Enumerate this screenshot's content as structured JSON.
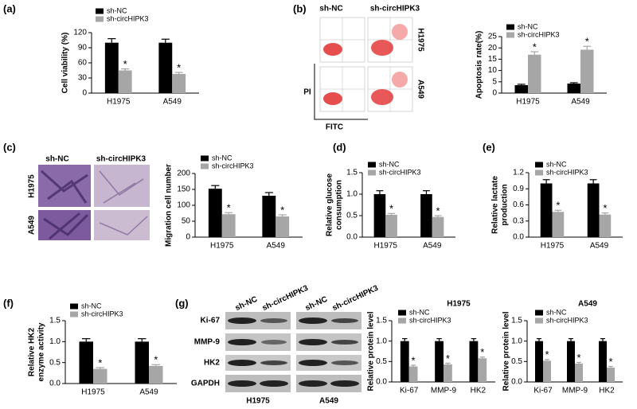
{
  "panels": [
    "(a)",
    "(b)",
    "(c)",
    "(d)",
    "(e)",
    "(f)",
    "(g)"
  ],
  "flow": {
    "columns": [
      "sh-NC",
      "sh-circHIPK3"
    ],
    "rows": [
      "H1975",
      "A549"
    ],
    "y_label": "PI",
    "x_label": "FITC"
  },
  "micrographs": {
    "columns": [
      "sh-NC",
      "sh-circHIPK3"
    ],
    "rows": [
      "H1975",
      "A549"
    ]
  },
  "western": {
    "columns": [
      "sh-NC",
      "sh-circHIPK3",
      "sh-NC",
      "sh-circHIPK3"
    ],
    "proteins": [
      "Ki-67",
      "MMP-9",
      "HK2",
      "GAPDH"
    ],
    "cell_lines": [
      "H1975",
      "A549"
    ]
  },
  "chart_data": [
    {
      "type": "bar",
      "y_label": "Cell viability (%)",
      "categories": [
        "H1975",
        "A549"
      ],
      "ylim": [
        0,
        120
      ],
      "yticks": [
        0,
        30,
        60,
        90,
        120
      ],
      "series": [
        {
          "name": "sh-NC",
          "color": "#000000",
          "values": [
            100,
            100
          ],
          "errors": [
            8,
            7
          ]
        },
        {
          "name": "sh-circHIPK3",
          "color": "#a6a6a6",
          "values": [
            45,
            38
          ],
          "errors": [
            3,
            3
          ],
          "annotations": [
            "*",
            "*"
          ]
        }
      ]
    },
    {
      "type": "bar",
      "y_label": "Apoptosis rate(%)",
      "categories": [
        "H1975",
        "A549"
      ],
      "ylim": [
        0,
        25
      ],
      "yticks": [
        0,
        5,
        10,
        15,
        20,
        25
      ],
      "series": [
        {
          "name": "sh-NC",
          "color": "#000000",
          "values": [
            3.5,
            4.2
          ],
          "errors": [
            0.4,
            0.4
          ]
        },
        {
          "name": "sh-circHIPK3",
          "color": "#a6a6a6",
          "values": [
            17,
            19.2
          ],
          "errors": [
            1.3,
            1.5
          ],
          "annotations": [
            "*",
            "*"
          ]
        }
      ]
    },
    {
      "type": "bar",
      "y_label": "Migration cell number",
      "categories": [
        "H1975",
        "A549"
      ],
      "ylim": [
        0,
        200
      ],
      "yticks": [
        0,
        50,
        100,
        150,
        200
      ],
      "series": [
        {
          "name": "sh-NC",
          "color": "#000000",
          "values": [
            152,
            130
          ],
          "errors": [
            10,
            10
          ]
        },
        {
          "name": "sh-circHIPK3",
          "color": "#a6a6a6",
          "values": [
            72,
            65
          ],
          "errors": [
            5,
            5
          ],
          "annotations": [
            "*",
            "*"
          ]
        }
      ]
    },
    {
      "type": "bar",
      "y_label": [
        "Relative glucose",
        "consumption"
      ],
      "categories": [
        "H1975",
        "A549"
      ],
      "ylim": [
        0,
        1.5
      ],
      "yticks": [
        {
          "value": 0,
          "label": "0.0"
        },
        0.5,
        {
          "value": 1,
          "label": "1.0"
        },
        1.5
      ],
      "series": [
        {
          "name": "sh-NC",
          "color": "#000000",
          "values": [
            1,
            1
          ],
          "errors": [
            0.08,
            0.08
          ]
        },
        {
          "name": "sh-circHIPK3",
          "color": "#a6a6a6",
          "values": [
            0.52,
            0.47
          ],
          "errors": [
            0.03,
            0.03
          ],
          "annotations": [
            "*",
            "*"
          ]
        }
      ]
    },
    {
      "type": "bar",
      "y_label": [
        "Relative lactate",
        "production"
      ],
      "categories": [
        "H1975",
        "A549"
      ],
      "ylim": [
        0,
        1.2
      ],
      "yticks": [
        {
          "value": 0,
          "label": "0.0"
        },
        0.3,
        0.6,
        0.9,
        1.2
      ],
      "series": [
        {
          "name": "sh-NC",
          "color": "#000000",
          "values": [
            1,
            1
          ],
          "errors": [
            0.07,
            0.07
          ]
        },
        {
          "name": "sh-circHIPK3",
          "color": "#a6a6a6",
          "values": [
            0.47,
            0.42
          ],
          "errors": [
            0.03,
            0.03
          ],
          "annotations": [
            "*",
            "*"
          ]
        }
      ]
    },
    {
      "type": "bar",
      "y_label": [
        "Relative HK2",
        "enzyme activity"
      ],
      "categories": [
        "H1975",
        "A549"
      ],
      "ylim": [
        0,
        1.5
      ],
      "yticks": [
        {
          "value": 0,
          "label": "0.0"
        },
        0.5,
        {
          "value": 1,
          "label": "1.0"
        },
        1.5
      ],
      "series": [
        {
          "name": "sh-NC",
          "color": "#000000",
          "values": [
            1,
            1
          ],
          "errors": [
            0.07,
            0.07
          ]
        },
        {
          "name": "sh-circHIPK3",
          "color": "#a6a6a6",
          "values": [
            0.35,
            0.42
          ],
          "errors": [
            0.03,
            0.03
          ],
          "annotations": [
            "*",
            "*"
          ]
        }
      ]
    },
    {
      "type": "bar",
      "title": "H1975",
      "y_label": "Relative protein level",
      "categories": [
        "Ki-67",
        "MMP-9",
        "HK2"
      ],
      "ylim": [
        0,
        1.5
      ],
      "yticks": [
        {
          "value": 0,
          "label": "0.0"
        },
        0.5,
        {
          "value": 1,
          "label": "1.0"
        },
        1.5
      ],
      "series": [
        {
          "name": "sh-NC",
          "color": "#000000",
          "values": [
            1,
            1,
            1
          ],
          "errors": [
            0.06,
            0.06,
            0.06
          ]
        },
        {
          "name": "sh-circHIPK3",
          "color": "#a6a6a6",
          "values": [
            0.38,
            0.43,
            0.58
          ],
          "errors": [
            0.03,
            0.03,
            0.03
          ],
          "annotations": [
            "*",
            "*",
            "*"
          ]
        }
      ]
    },
    {
      "type": "bar",
      "title": "A549",
      "y_label": "Relative protein level",
      "categories": [
        "Ki-67",
        "MMP-9",
        "HK2"
      ],
      "ylim": [
        0,
        1.5
      ],
      "yticks": [
        {
          "value": 0,
          "label": "0.0"
        },
        0.5,
        {
          "value": 1,
          "label": "1.0"
        },
        1.5
      ],
      "series": [
        {
          "name": "sh-NC",
          "color": "#000000",
          "values": [
            1,
            1,
            1
          ],
          "errors": [
            0.06,
            0.06,
            0.06
          ]
        },
        {
          "name": "sh-circHIPK3",
          "color": "#a6a6a6",
          "values": [
            0.52,
            0.45,
            0.35
          ],
          "errors": [
            0.03,
            0.03,
            0.03
          ],
          "annotations": [
            "*",
            "*",
            "*"
          ]
        }
      ]
    }
  ]
}
